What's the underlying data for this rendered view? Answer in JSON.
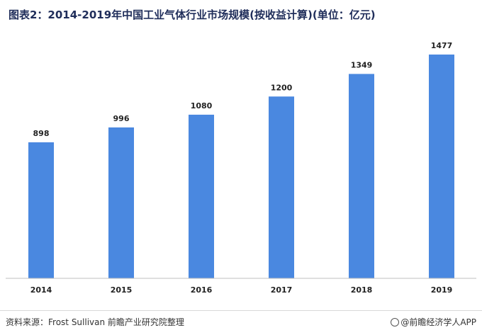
{
  "title": "图表2：2014-2019年中国工业气体行业市场规模(按收益计算)(单位：亿元)",
  "footer": {
    "source": "资料来源：Frost Sullivan 前瞻产业研究院整理",
    "brand": "@前瞻经济学人APP"
  },
  "colors": {
    "bar": "#4a88e0",
    "axis": "#bfbfbf",
    "label": "#222222"
  },
  "chart_data": {
    "type": "bar",
    "title": "图表2：2014-2019年中国工业气体行业市场规模(按收益计算)(单位：亿元)",
    "categories": [
      "2014",
      "2015",
      "2016",
      "2017",
      "2018",
      "2019"
    ],
    "values": [
      898,
      996,
      1080,
      1200,
      1349,
      1477
    ],
    "unit": "亿元",
    "ylim": [
      0,
      1650
    ],
    "grid": false,
    "legend": "none",
    "data_labels": true
  }
}
